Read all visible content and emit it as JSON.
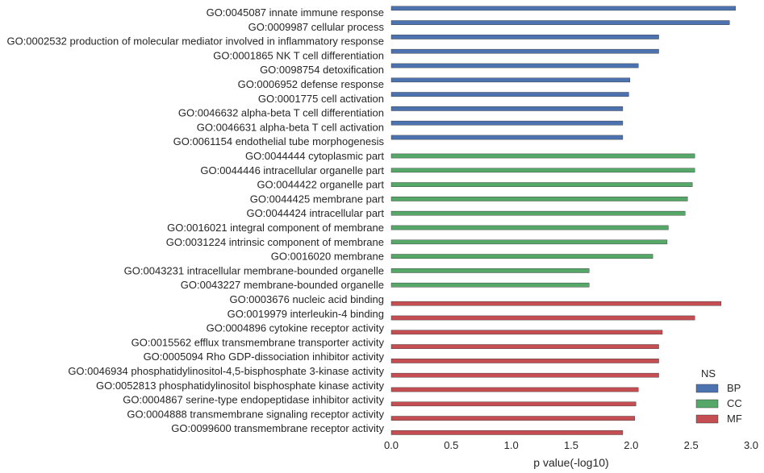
{
  "chart_data": {
    "type": "bar",
    "orientation": "horizontal",
    "xlabel": "p value(-log10)",
    "ylabel": "",
    "xlim": [
      0,
      3.0
    ],
    "xticks": [
      "0.0",
      "0.5",
      "1.0",
      "1.5",
      "2.0",
      "2.5",
      "3.0"
    ],
    "grid": false,
    "legend": {
      "title": "NS",
      "placement": "bottom-right",
      "entries": [
        {
          "label": "BP",
          "color": "#4c72b0"
        },
        {
          "label": "CC",
          "color": "#55a868"
        },
        {
          "label": "MF",
          "color": "#c44e52"
        }
      ]
    },
    "series": [
      {
        "name": "BP",
        "color": "#4c72b0",
        "slot": 0,
        "items": [
          {
            "category": "GO:0045087 innate immune response",
            "value": 2.87
          },
          {
            "category": "GO:0009987 cellular process",
            "value": 2.82
          },
          {
            "category": "GO:0002532 production of molecular mediator involved in inflammatory response",
            "value": 2.23
          },
          {
            "category": "GO:0001865 NK T cell differentiation",
            "value": 2.23
          },
          {
            "category": "GO:0098754 detoxification",
            "value": 2.06
          },
          {
            "category": "GO:0006952 defense response",
            "value": 1.99
          },
          {
            "category": "GO:0001775 cell activation",
            "value": 1.98
          },
          {
            "category": "GO:0046632 alpha-beta T cell differentiation",
            "value": 1.93
          },
          {
            "category": "GO:0046631 alpha-beta T cell activation",
            "value": 1.93
          },
          {
            "category": "GO:0061154 endothelial tube morphogenesis",
            "value": 1.93
          }
        ]
      },
      {
        "name": "CC",
        "color": "#55a868",
        "slot": 1,
        "items": [
          {
            "category": "GO:0044444 cytoplasmic part",
            "value": 2.53
          },
          {
            "category": "GO:0044446 intracellular organelle part",
            "value": 2.53
          },
          {
            "category": "GO:0044422 organelle part",
            "value": 2.51
          },
          {
            "category": "GO:0044425 membrane part",
            "value": 2.47
          },
          {
            "category": "GO:0044424 intracellular part",
            "value": 2.45
          },
          {
            "category": "GO:0016021 integral component of membrane",
            "value": 2.31
          },
          {
            "category": "GO:0031224 intrinsic component of membrane",
            "value": 2.3
          },
          {
            "category": "GO:0016020 membrane",
            "value": 2.18
          },
          {
            "category": "GO:0043231 intracellular membrane-bounded organelle",
            "value": 1.65
          },
          {
            "category": "GO:0043227 membrane-bounded organelle",
            "value": 1.65
          }
        ]
      },
      {
        "name": "MF",
        "color": "#c44e52",
        "slot": 2,
        "items": [
          {
            "category": "GO:0003676 nucleic acid binding",
            "value": 2.75
          },
          {
            "category": "GO:0019979 interleukin-4 binding",
            "value": 2.53
          },
          {
            "category": "GO:0004896 cytokine receptor activity",
            "value": 2.26
          },
          {
            "category": "GO:0015562 efflux transmembrane transporter activity",
            "value": 2.23
          },
          {
            "category": "GO:0005094 Rho GDP-dissociation inhibitor activity",
            "value": 2.23
          },
          {
            "category": "GO:0046934 phosphatidylinositol-4,5-bisphosphate 3-kinase activity",
            "value": 2.23
          },
          {
            "category": "GO:0052813 phosphatidylinositol bisphosphate kinase activity",
            "value": 2.06
          },
          {
            "category": "GO:0004867 serine-type endopeptidase inhibitor activity",
            "value": 2.04
          },
          {
            "category": "GO:0004888 transmembrane signaling receptor activity",
            "value": 2.03
          },
          {
            "category": "GO:0099600 transmembrane receptor activity",
            "value": 1.93
          }
        ]
      }
    ]
  }
}
